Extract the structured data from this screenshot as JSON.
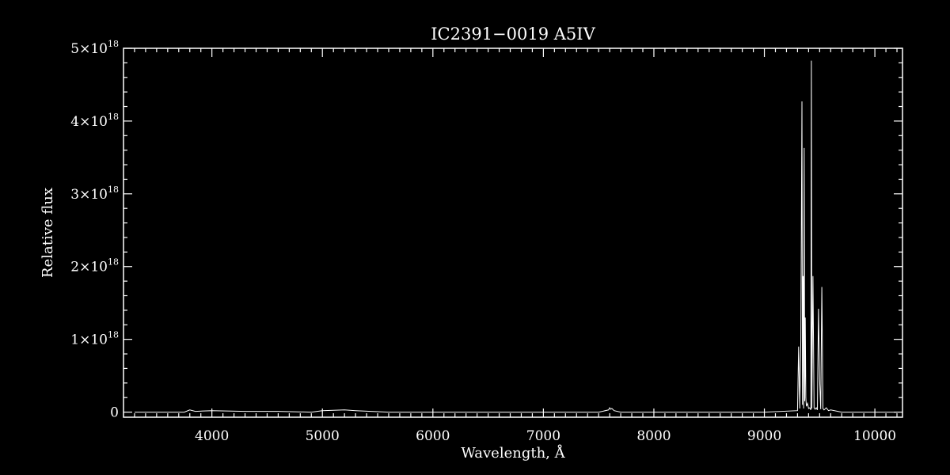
{
  "chart_data": {
    "type": "line",
    "title": "IC2391−0019   A5IV",
    "xlabel": "Wavelength, Å",
    "ylabel": "Relative flux",
    "xlim": [
      3200,
      10250
    ],
    "ylim": [
      -0.07,
      5.0
    ],
    "y_unit_multiplier": "1e18",
    "x_ticks": [
      4000,
      5000,
      6000,
      7000,
      8000,
      9000,
      10000
    ],
    "y_ticks": [
      {
        "value": 0,
        "base": "0",
        "exp": ""
      },
      {
        "value": 1,
        "base": "1×10",
        "exp": "18"
      },
      {
        "value": 2,
        "base": "2×10",
        "exp": "18"
      },
      {
        "value": 3,
        "base": "3×10",
        "exp": "18"
      },
      {
        "value": 4,
        "base": "4×10",
        "exp": "18"
      },
      {
        "value": 5,
        "base": "5×10",
        "exp": "18"
      }
    ],
    "grid": false,
    "series": [
      {
        "x": [
          3300,
          3750,
          3800,
          3850,
          4000,
          4300,
          4600,
          4900,
          5000,
          5200,
          5300,
          5600,
          6000,
          6500,
          7000,
          7500,
          7590,
          7600,
          7610,
          7620,
          7640,
          7700,
          8000,
          8500,
          9000,
          9300,
          9310,
          9320,
          9330,
          9340,
          9345,
          9350,
          9355,
          9360,
          9365,
          9370,
          9375,
          9380,
          9390,
          9400,
          9410,
          9420,
          9425,
          9430,
          9440,
          9450,
          9460,
          9470,
          9480,
          9490,
          9500,
          9510,
          9520,
          9530,
          9540,
          9560,
          9580,
          9600,
          9700,
          9800,
          10000,
          10200
        ],
        "y": [
          0.0,
          0.0,
          0.03,
          0.01,
          0.02,
          0.01,
          0.01,
          0.0,
          0.02,
          0.03,
          0.02,
          0.0,
          0.0,
          0.0,
          0.0,
          0.0,
          0.03,
          0.06,
          0.04,
          0.05,
          0.02,
          0.0,
          0.0,
          0.0,
          0.0,
          0.02,
          0.9,
          0.05,
          1.0,
          4.27,
          0.1,
          1.87,
          0.05,
          3.63,
          0.15,
          1.3,
          0.2,
          0.08,
          0.12,
          0.05,
          0.06,
          0.03,
          4.83,
          0.05,
          1.87,
          0.06,
          0.04,
          0.06,
          0.03,
          1.42,
          0.45,
          0.04,
          1.72,
          0.05,
          0.03,
          0.06,
          0.02,
          0.03,
          0.0,
          0.0,
          0.0,
          0.0
        ]
      }
    ]
  }
}
